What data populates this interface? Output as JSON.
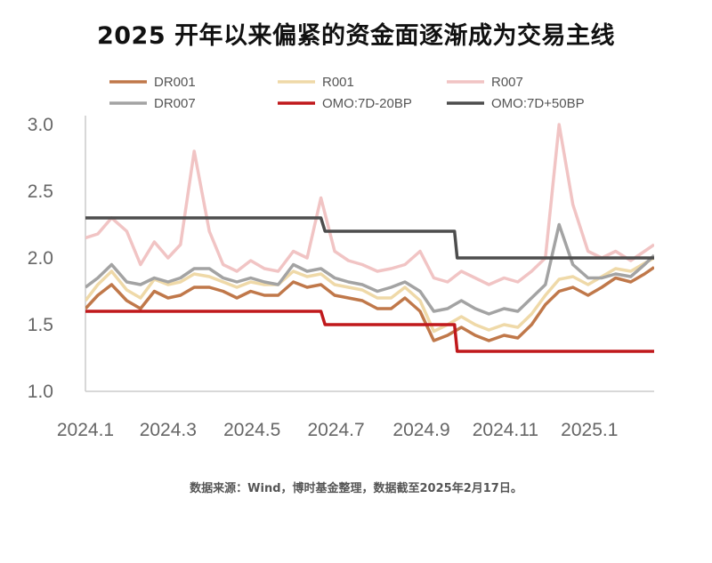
{
  "title": "2025 开年以来偏紧的资金面逐渐成为交易主线",
  "source": "数据来源：Wind，博时基金整理，数据截至2025年2月17日。",
  "chart_data": {
    "type": "line",
    "ylim": [
      1.0,
      3.0
    ],
    "yticks": [
      "3.0",
      "2.5",
      "2.0",
      "1.5",
      "1.0"
    ],
    "ytick_values": [
      3.0,
      2.5,
      2.0,
      1.5,
      1.0
    ],
    "xticks": [
      "2024.1",
      "2024.3",
      "2024.5",
      "2024.7",
      "2024.9",
      "2024.11",
      "2025.1"
    ],
    "xtick_values": [
      "2024-01-01",
      "2024-03-01",
      "2024-05-01",
      "2024-07-01",
      "2024-09-01",
      "2024-11-01",
      "2025-01-01"
    ],
    "xrange": [
      "2024-01-01",
      "2025-02-17"
    ],
    "grid": false,
    "legend_position": "top",
    "series": [
      {
        "name": "DR001",
        "color": "#c0784a",
        "width": 3.5,
        "points": [
          [
            "2024-01-01",
            1.62
          ],
          [
            "2024-01-10",
            1.72
          ],
          [
            "2024-01-20",
            1.8
          ],
          [
            "2024-01-31",
            1.68
          ],
          [
            "2024-02-10",
            1.62
          ],
          [
            "2024-02-20",
            1.75
          ],
          [
            "2024-03-01",
            1.7
          ],
          [
            "2024-03-10",
            1.72
          ],
          [
            "2024-03-20",
            1.78
          ],
          [
            "2024-03-31",
            1.78
          ],
          [
            "2024-04-10",
            1.75
          ],
          [
            "2024-04-20",
            1.7
          ],
          [
            "2024-04-30",
            1.75
          ],
          [
            "2024-05-10",
            1.72
          ],
          [
            "2024-05-20",
            1.72
          ],
          [
            "2024-05-31",
            1.82
          ],
          [
            "2024-06-10",
            1.78
          ],
          [
            "2024-06-20",
            1.8
          ],
          [
            "2024-06-30",
            1.72
          ],
          [
            "2024-07-10",
            1.7
          ],
          [
            "2024-07-20",
            1.68
          ],
          [
            "2024-07-31",
            1.62
          ],
          [
            "2024-08-10",
            1.62
          ],
          [
            "2024-08-20",
            1.7
          ],
          [
            "2024-08-31",
            1.6
          ],
          [
            "2024-09-10",
            1.38
          ],
          [
            "2024-09-20",
            1.42
          ],
          [
            "2024-09-30",
            1.48
          ],
          [
            "2024-10-10",
            1.42
          ],
          [
            "2024-10-20",
            1.38
          ],
          [
            "2024-10-31",
            1.42
          ],
          [
            "2024-11-10",
            1.4
          ],
          [
            "2024-11-20",
            1.5
          ],
          [
            "2024-11-30",
            1.65
          ],
          [
            "2024-12-10",
            1.75
          ],
          [
            "2024-12-20",
            1.78
          ],
          [
            "2024-12-31",
            1.72
          ],
          [
            "2025-01-10",
            1.78
          ],
          [
            "2025-01-20",
            1.85
          ],
          [
            "2025-01-31",
            1.82
          ],
          [
            "2025-02-10",
            1.88
          ],
          [
            "2025-02-17",
            1.93
          ]
        ]
      },
      {
        "name": "DR007",
        "color": "#a3a3a3",
        "width": 3.5,
        "points": [
          [
            "2024-01-01",
            1.78
          ],
          [
            "2024-01-10",
            1.85
          ],
          [
            "2024-01-20",
            1.95
          ],
          [
            "2024-01-31",
            1.82
          ],
          [
            "2024-02-10",
            1.8
          ],
          [
            "2024-02-20",
            1.85
          ],
          [
            "2024-03-01",
            1.82
          ],
          [
            "2024-03-10",
            1.85
          ],
          [
            "2024-03-20",
            1.92
          ],
          [
            "2024-03-31",
            1.92
          ],
          [
            "2024-04-10",
            1.85
          ],
          [
            "2024-04-20",
            1.82
          ],
          [
            "2024-04-30",
            1.85
          ],
          [
            "2024-05-10",
            1.82
          ],
          [
            "2024-05-20",
            1.8
          ],
          [
            "2024-05-31",
            1.95
          ],
          [
            "2024-06-10",
            1.9
          ],
          [
            "2024-06-20",
            1.92
          ],
          [
            "2024-06-30",
            1.85
          ],
          [
            "2024-07-10",
            1.82
          ],
          [
            "2024-07-20",
            1.8
          ],
          [
            "2024-07-31",
            1.75
          ],
          [
            "2024-08-10",
            1.78
          ],
          [
            "2024-08-20",
            1.82
          ],
          [
            "2024-08-31",
            1.75
          ],
          [
            "2024-09-10",
            1.6
          ],
          [
            "2024-09-20",
            1.62
          ],
          [
            "2024-09-30",
            1.68
          ],
          [
            "2024-10-10",
            1.62
          ],
          [
            "2024-10-20",
            1.58
          ],
          [
            "2024-10-31",
            1.62
          ],
          [
            "2024-11-10",
            1.6
          ],
          [
            "2024-11-20",
            1.7
          ],
          [
            "2024-11-30",
            1.8
          ],
          [
            "2024-12-10",
            2.25
          ],
          [
            "2024-12-20",
            1.95
          ],
          [
            "2024-12-31",
            1.85
          ],
          [
            "2025-01-10",
            1.85
          ],
          [
            "2025-01-20",
            1.88
          ],
          [
            "2025-01-31",
            1.86
          ],
          [
            "2025-02-10",
            1.95
          ],
          [
            "2025-02-17",
            2.02
          ]
        ]
      },
      {
        "name": "R001",
        "color": "#efd9a8",
        "width": 3.5,
        "points": [
          [
            "2024-01-01",
            1.68
          ],
          [
            "2024-01-10",
            1.8
          ],
          [
            "2024-01-20",
            1.9
          ],
          [
            "2024-01-31",
            1.76
          ],
          [
            "2024-02-10",
            1.7
          ],
          [
            "2024-02-20",
            1.84
          ],
          [
            "2024-03-01",
            1.8
          ],
          [
            "2024-03-10",
            1.82
          ],
          [
            "2024-03-20",
            1.88
          ],
          [
            "2024-03-31",
            1.86
          ],
          [
            "2024-04-10",
            1.82
          ],
          [
            "2024-04-20",
            1.78
          ],
          [
            "2024-04-30",
            1.82
          ],
          [
            "2024-05-10",
            1.8
          ],
          [
            "2024-05-20",
            1.8
          ],
          [
            "2024-05-31",
            1.9
          ],
          [
            "2024-06-10",
            1.86
          ],
          [
            "2024-06-20",
            1.88
          ],
          [
            "2024-06-30",
            1.8
          ],
          [
            "2024-07-10",
            1.78
          ],
          [
            "2024-07-20",
            1.76
          ],
          [
            "2024-07-31",
            1.7
          ],
          [
            "2024-08-10",
            1.7
          ],
          [
            "2024-08-20",
            1.78
          ],
          [
            "2024-08-31",
            1.68
          ],
          [
            "2024-09-10",
            1.45
          ],
          [
            "2024-09-20",
            1.5
          ],
          [
            "2024-09-30",
            1.56
          ],
          [
            "2024-10-10",
            1.5
          ],
          [
            "2024-10-20",
            1.46
          ],
          [
            "2024-10-31",
            1.5
          ],
          [
            "2024-11-10",
            1.48
          ],
          [
            "2024-11-20",
            1.58
          ],
          [
            "2024-11-30",
            1.72
          ],
          [
            "2024-12-10",
            1.84
          ],
          [
            "2024-12-20",
            1.86
          ],
          [
            "2024-12-31",
            1.8
          ],
          [
            "2025-01-10",
            1.86
          ],
          [
            "2025-01-20",
            1.92
          ],
          [
            "2025-01-31",
            1.9
          ],
          [
            "2025-02-10",
            1.96
          ],
          [
            "2025-02-17",
            2.0
          ]
        ]
      },
      {
        "name": "R007",
        "color": "#f1c4c4",
        "width": 3.5,
        "points": [
          [
            "2024-01-01",
            2.15
          ],
          [
            "2024-01-10",
            2.18
          ],
          [
            "2024-01-20",
            2.3
          ],
          [
            "2024-01-31",
            2.2
          ],
          [
            "2024-02-10",
            1.95
          ],
          [
            "2024-02-20",
            2.12
          ],
          [
            "2024-03-01",
            2.0
          ],
          [
            "2024-03-10",
            2.1
          ],
          [
            "2024-03-20",
            2.8
          ],
          [
            "2024-03-31",
            2.2
          ],
          [
            "2024-04-10",
            1.95
          ],
          [
            "2024-04-20",
            1.9
          ],
          [
            "2024-04-30",
            1.98
          ],
          [
            "2024-05-10",
            1.92
          ],
          [
            "2024-05-20",
            1.9
          ],
          [
            "2024-05-31",
            2.05
          ],
          [
            "2024-06-10",
            2.0
          ],
          [
            "2024-06-20",
            2.45
          ],
          [
            "2024-06-30",
            2.05
          ],
          [
            "2024-07-10",
            1.98
          ],
          [
            "2024-07-20",
            1.95
          ],
          [
            "2024-07-31",
            1.9
          ],
          [
            "2024-08-10",
            1.92
          ],
          [
            "2024-08-20",
            1.95
          ],
          [
            "2024-08-31",
            2.05
          ],
          [
            "2024-09-10",
            1.85
          ],
          [
            "2024-09-20",
            1.82
          ],
          [
            "2024-09-30",
            1.9
          ],
          [
            "2024-10-10",
            1.85
          ],
          [
            "2024-10-20",
            1.8
          ],
          [
            "2024-10-31",
            1.85
          ],
          [
            "2024-11-10",
            1.82
          ],
          [
            "2024-11-20",
            1.9
          ],
          [
            "2024-11-30",
            2.0
          ],
          [
            "2024-12-10",
            3.0
          ],
          [
            "2024-12-20",
            2.4
          ],
          [
            "2024-12-31",
            2.05
          ],
          [
            "2025-01-10",
            2.0
          ],
          [
            "2025-01-20",
            2.05
          ],
          [
            "2025-01-31",
            1.98
          ],
          [
            "2025-02-10",
            2.05
          ],
          [
            "2025-02-17",
            2.1
          ]
        ]
      },
      {
        "name": "OMO:7D-20BP",
        "color": "#c0191c",
        "width": 3.5,
        "points": [
          [
            "2024-01-01",
            1.6
          ],
          [
            "2024-06-20",
            1.6
          ],
          [
            "2024-06-23",
            1.5
          ],
          [
            "2024-09-25",
            1.5
          ],
          [
            "2024-09-27",
            1.3
          ],
          [
            "2025-02-17",
            1.3
          ]
        ]
      },
      {
        "name": "OMO:7D+50BP",
        "color": "#4d4d4d",
        "width": 3.5,
        "points": [
          [
            "2024-01-01",
            2.3
          ],
          [
            "2024-06-20",
            2.3
          ],
          [
            "2024-06-23",
            2.2
          ],
          [
            "2024-09-25",
            2.2
          ],
          [
            "2024-09-27",
            2.0
          ],
          [
            "2025-02-17",
            2.0
          ]
        ]
      }
    ]
  }
}
